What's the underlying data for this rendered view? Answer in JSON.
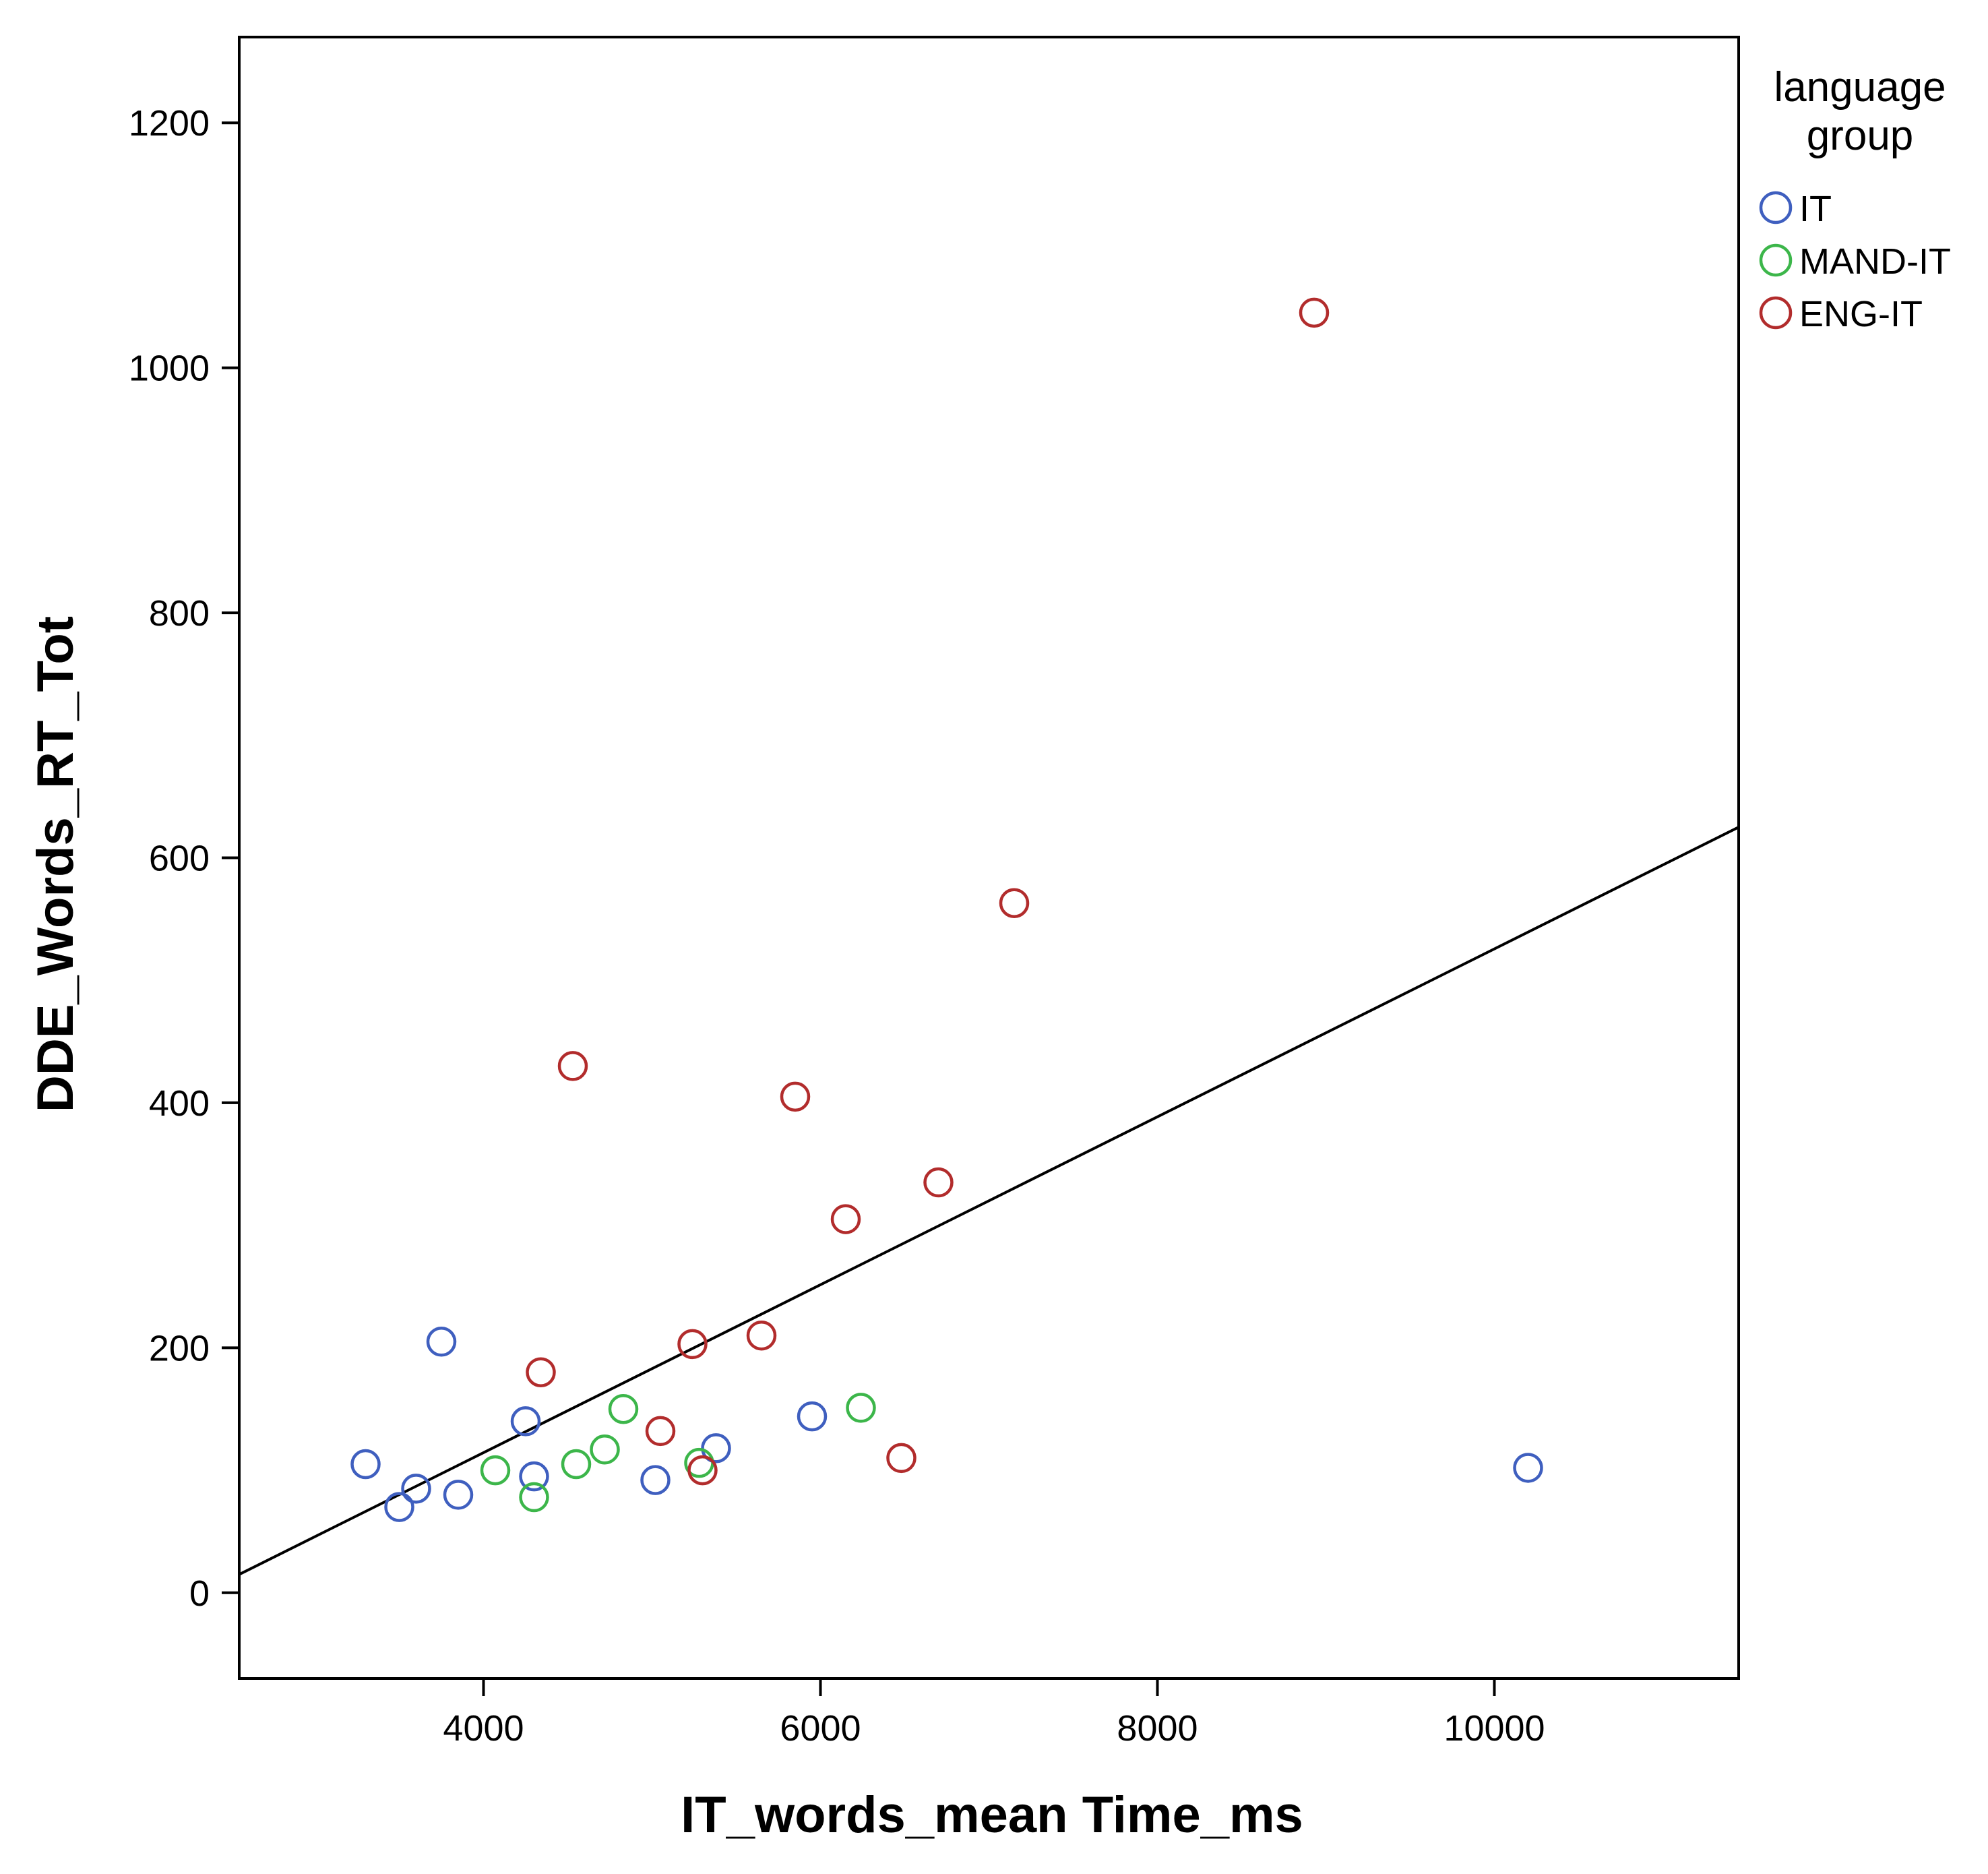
{
  "chart_data": {
    "type": "scatter",
    "title": "",
    "xlabel": "IT_words_mean Time_ms",
    "ylabel": "DDE_Words_RT_Tot",
    "xlim": [
      2550,
      11450
    ],
    "ylim": [
      -70,
      1270
    ],
    "xticks": [
      4000,
      6000,
      8000,
      10000
    ],
    "yticks": [
      0,
      200,
      400,
      600,
      800,
      1000,
      1200
    ],
    "xtick_labels": [
      "4000",
      "6000",
      "8000",
      "10000"
    ],
    "ytick_labels": [
      "0",
      "200",
      "400",
      "600",
      "800",
      "1000",
      "1200"
    ],
    "grid": false,
    "legend": {
      "title_lines": [
        "language",
        "group"
      ],
      "placement": "outside-right-top",
      "entries": [
        {
          "label": "IT",
          "color": "#3f5fbf"
        },
        {
          "label": "MAND-IT",
          "color": "#3cb64a"
        },
        {
          "label": "ENG-IT",
          "color": "#b22c2c"
        }
      ]
    },
    "series": [
      {
        "name": "IT",
        "color": "#3f5fbf",
        "points": [
          {
            "x": 3300,
            "y": 105
          },
          {
            "x": 3500,
            "y": 70
          },
          {
            "x": 3600,
            "y": 85
          },
          {
            "x": 3750,
            "y": 205
          },
          {
            "x": 3850,
            "y": 80
          },
          {
            "x": 4250,
            "y": 140
          },
          {
            "x": 4300,
            "y": 95
          },
          {
            "x": 5020,
            "y": 92
          },
          {
            "x": 5380,
            "y": 118
          },
          {
            "x": 5950,
            "y": 144
          },
          {
            "x": 10200,
            "y": 102
          }
        ]
      },
      {
        "name": "MAND-IT",
        "color": "#3cb64a",
        "points": [
          {
            "x": 4070,
            "y": 100
          },
          {
            "x": 4300,
            "y": 78
          },
          {
            "x": 4550,
            "y": 105
          },
          {
            "x": 4720,
            "y": 117
          },
          {
            "x": 4830,
            "y": 150
          },
          {
            "x": 5280,
            "y": 106
          },
          {
            "x": 6240,
            "y": 151
          }
        ]
      },
      {
        "name": "ENG-IT",
        "color": "#b22c2c",
        "points": [
          {
            "x": 4340,
            "y": 180
          },
          {
            "x": 4530,
            "y": 430
          },
          {
            "x": 5050,
            "y": 132
          },
          {
            "x": 5240,
            "y": 203
          },
          {
            "x": 5300,
            "y": 100
          },
          {
            "x": 5650,
            "y": 210
          },
          {
            "x": 5850,
            "y": 405
          },
          {
            "x": 6150,
            "y": 305
          },
          {
            "x": 6480,
            "y": 110
          },
          {
            "x": 6700,
            "y": 335
          },
          {
            "x": 7150,
            "y": 563
          },
          {
            "x": 8930,
            "y": 1045
          }
        ]
      }
    ],
    "fit_line": {
      "x": [
        2550,
        11450
      ],
      "y": [
        15,
        625
      ],
      "color": "#000000"
    }
  }
}
